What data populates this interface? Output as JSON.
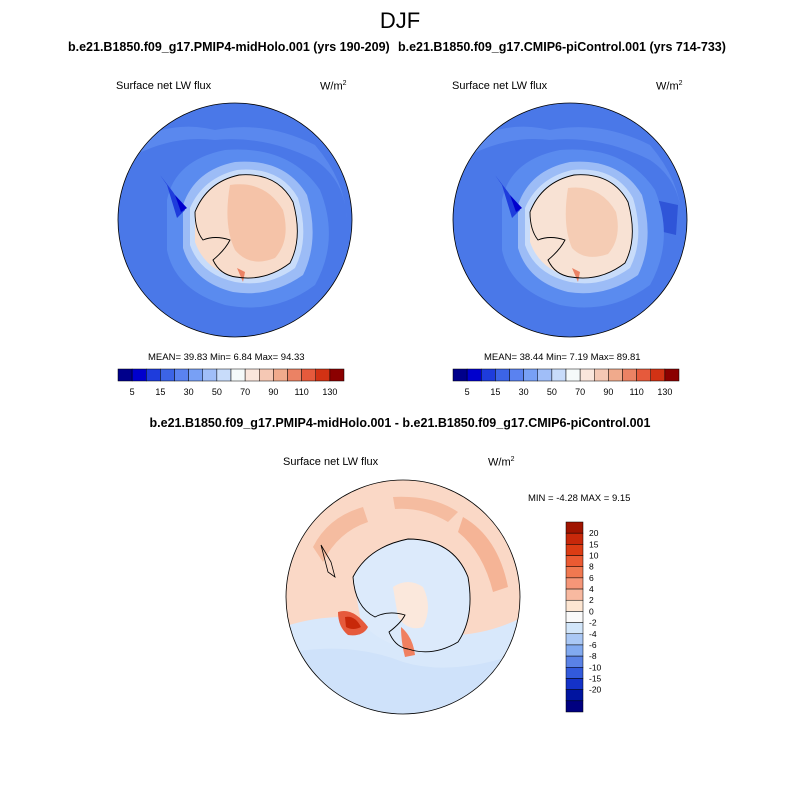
{
  "page": {
    "title": "DJF",
    "left_title": "b.e21.B1850.f09_g17.PMIP4-midHolo.001 (yrs 190-209)",
    "right_title": "b.e21.B1850.f09_g17.CMIP6-piControl.001 (yrs 714-733)",
    "diff_title": "b.e21.B1850.f09_g17.PMIP4-midHolo.001 - b.e21.B1850.f09_g17.CMIP6-piControl.001"
  },
  "chart_data": [
    {
      "type": "heatmap",
      "projection": "south-polar-stereographic",
      "variable": "Surface net LW flux",
      "units": "W/m",
      "units_exponent": "2",
      "stats_text": "MEAN=  39.83  Min=   6.84  Max=  94.33",
      "mean": 39.83,
      "min": 6.84,
      "max": 94.33,
      "colorbar": {
        "orientation": "horizontal",
        "levels": [
          5,
          10,
          15,
          20,
          30,
          40,
          50,
          60,
          70,
          80,
          90,
          100,
          110,
          120,
          130
        ],
        "tick_labels": [
          "5",
          "15",
          "30",
          "50",
          "70",
          "90",
          "110",
          "130"
        ],
        "colors": [
          "#00008b",
          "#0000cd",
          "#1e3cdc",
          "#3c64e6",
          "#5a82f0",
          "#78a0f5",
          "#a0bef8",
          "#c8dcfa",
          "#f5fafa",
          "#fae6dc",
          "#f5c8b4",
          "#f0aa8c",
          "#eb8264",
          "#e65a3c",
          "#d23214",
          "#8b0000"
        ]
      }
    },
    {
      "type": "heatmap",
      "projection": "south-polar-stereographic",
      "variable": "Surface net LW flux",
      "units": "W/m",
      "units_exponent": "2",
      "stats_text": "MEAN=  38.44  Min=   7.19  Max=  89.81",
      "mean": 38.44,
      "min": 7.19,
      "max": 89.81,
      "colorbar": {
        "orientation": "horizontal",
        "levels": [
          5,
          10,
          15,
          20,
          30,
          40,
          50,
          60,
          70,
          80,
          90,
          100,
          110,
          120,
          130
        ],
        "tick_labels": [
          "5",
          "15",
          "30",
          "50",
          "70",
          "90",
          "110",
          "130"
        ],
        "colors": [
          "#00008b",
          "#0000cd",
          "#1e3cdc",
          "#3c64e6",
          "#5a82f0",
          "#78a0f5",
          "#a0bef8",
          "#c8dcfa",
          "#f5fafa",
          "#fae6dc",
          "#f5c8b4",
          "#f0aa8c",
          "#eb8264",
          "#e65a3c",
          "#d23214",
          "#8b0000"
        ]
      }
    },
    {
      "type": "heatmap",
      "projection": "south-polar-stereographic",
      "variable": "Surface net LW flux",
      "units": "W/m",
      "units_exponent": "2",
      "stats_text": "MIN =  -4.28 MAX =   9.15",
      "min": -4.28,
      "max": 9.15,
      "colorbar": {
        "orientation": "vertical",
        "levels": [
          -20,
          -15,
          -10,
          -8,
          -6,
          -4,
          -2,
          0,
          2,
          4,
          6,
          8,
          10,
          15,
          20
        ],
        "tick_labels": [
          "20",
          "15",
          "10",
          "8",
          "6",
          "4",
          "2",
          "0",
          "-2",
          "-4",
          "-6",
          "-8",
          "-10",
          "-15",
          "-20"
        ],
        "colors_top_to_bottom": [
          "#a01400",
          "#c8280a",
          "#dc3c14",
          "#eb5a32",
          "#f07850",
          "#f59678",
          "#f8b9a0",
          "#fde6d2",
          "#fafafa",
          "#d2e6fa",
          "#aac8f5",
          "#82aaf0",
          "#5a82e6",
          "#325adc",
          "#1432c8",
          "#0014a0",
          "#000080"
        ]
      }
    }
  ]
}
